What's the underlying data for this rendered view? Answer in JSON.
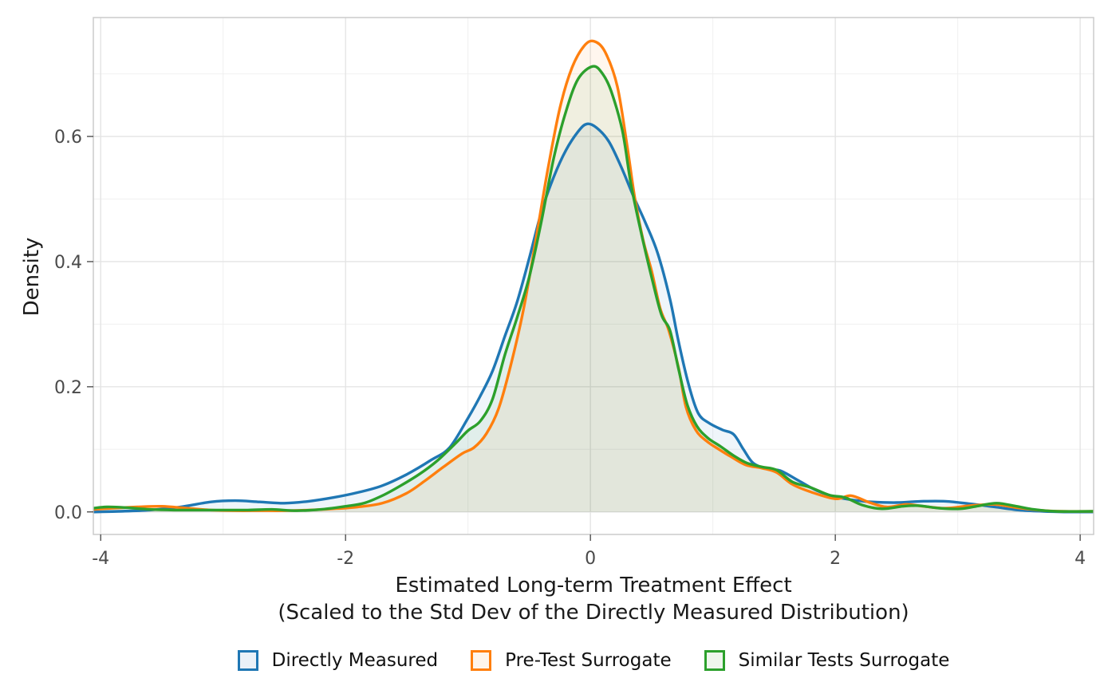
{
  "chart_data": {
    "type": "line",
    "subtype": "kernel-density-curves-with-fill",
    "title": "",
    "xlabel_line1": "Estimated Long-term Treatment Effect",
    "xlabel_line2": "(Scaled to the Std Dev of the Directly Measured Distribution)",
    "ylabel": "Density",
    "xlim": [
      -4.06,
      4.11
    ],
    "ylim": [
      -0.036,
      0.79
    ],
    "x_ticks": [
      {
        "v": -4,
        "label": "-4"
      },
      {
        "v": -2,
        "label": "-2"
      },
      {
        "v": 0,
        "label": "0"
      },
      {
        "v": 2,
        "label": "2"
      },
      {
        "v": 4,
        "label": "4"
      }
    ],
    "x_minor": [
      -3,
      -1,
      1,
      3
    ],
    "y_ticks": [
      {
        "v": 0.0,
        "label": "0.0"
      },
      {
        "v": 0.2,
        "label": "0.2"
      },
      {
        "v": 0.4,
        "label": "0.4"
      },
      {
        "v": 0.6,
        "label": "0.6"
      }
    ],
    "y_minor": [
      0.1,
      0.3,
      0.5,
      0.7
    ],
    "grid": "major and minor gridlines, light gray on white panel, gray panel border",
    "legend_position": "bottom-center",
    "colors": {
      "major_grid": "#e4e4e4",
      "minor_grid": "#f0f0f0",
      "panel_border": "#c8c8c8",
      "tick_mark": "#333333",
      "tick_label": "#4a4a4a",
      "axis_title": "#1a1a1a",
      "background": "#ffffff"
    },
    "series": [
      {
        "name": "Directly Measured",
        "color": "#1f77b4",
        "fill_tint": "#eaf1f8",
        "fill_opacity": 0.07,
        "peak": {
          "x": -0.03,
          "density": 0.62
        },
        "points": [
          [
            -4.06,
            0.0
          ],
          [
            -3.85,
            0.001
          ],
          [
            -3.6,
            0.003
          ],
          [
            -3.35,
            0.008
          ],
          [
            -3.1,
            0.016
          ],
          [
            -2.9,
            0.018
          ],
          [
            -2.7,
            0.016
          ],
          [
            -2.5,
            0.014
          ],
          [
            -2.3,
            0.017
          ],
          [
            -2.1,
            0.023
          ],
          [
            -1.9,
            0.031
          ],
          [
            -1.7,
            0.042
          ],
          [
            -1.5,
            0.06
          ],
          [
            -1.3,
            0.083
          ],
          [
            -1.15,
            0.103
          ],
          [
            -1.0,
            0.15
          ],
          [
            -0.9,
            0.185
          ],
          [
            -0.8,
            0.225
          ],
          [
            -0.7,
            0.28
          ],
          [
            -0.6,
            0.335
          ],
          [
            -0.5,
            0.405
          ],
          [
            -0.4,
            0.48
          ],
          [
            -0.3,
            0.535
          ],
          [
            -0.2,
            0.578
          ],
          [
            -0.1,
            0.608
          ],
          [
            -0.03,
            0.62
          ],
          [
            0.05,
            0.614
          ],
          [
            0.15,
            0.592
          ],
          [
            0.25,
            0.552
          ],
          [
            0.35,
            0.505
          ],
          [
            0.45,
            0.462
          ],
          [
            0.55,
            0.413
          ],
          [
            0.65,
            0.34
          ],
          [
            0.72,
            0.272
          ],
          [
            0.8,
            0.205
          ],
          [
            0.88,
            0.158
          ],
          [
            0.97,
            0.142
          ],
          [
            1.08,
            0.131
          ],
          [
            1.17,
            0.124
          ],
          [
            1.25,
            0.1
          ],
          [
            1.33,
            0.078
          ],
          [
            1.45,
            0.068
          ],
          [
            1.55,
            0.066
          ],
          [
            1.7,
            0.05
          ],
          [
            1.85,
            0.034
          ],
          [
            2.0,
            0.024
          ],
          [
            2.15,
            0.019
          ],
          [
            2.3,
            0.016
          ],
          [
            2.5,
            0.015
          ],
          [
            2.7,
            0.017
          ],
          [
            2.9,
            0.017
          ],
          [
            3.1,
            0.013
          ],
          [
            3.3,
            0.008
          ],
          [
            3.5,
            0.003
          ],
          [
            3.7,
            0.001
          ],
          [
            3.9,
            0.0
          ],
          [
            4.11,
            0.0
          ]
        ]
      },
      {
        "name": "Pre-Test Surrogate",
        "color": "#ff7f0e",
        "fill_tint": "#fef5ec",
        "fill_opacity": 0.07,
        "peak": {
          "x": 0.03,
          "density": 0.752
        },
        "points": [
          [
            -4.06,
            0.004
          ],
          [
            -3.9,
            0.006
          ],
          [
            -3.7,
            0.008
          ],
          [
            -3.5,
            0.009
          ],
          [
            -3.3,
            0.006
          ],
          [
            -3.1,
            0.003
          ],
          [
            -2.9,
            0.002
          ],
          [
            -2.7,
            0.002
          ],
          [
            -2.5,
            0.002
          ],
          [
            -2.3,
            0.003
          ],
          [
            -2.1,
            0.005
          ],
          [
            -1.9,
            0.008
          ],
          [
            -1.7,
            0.014
          ],
          [
            -1.5,
            0.03
          ],
          [
            -1.35,
            0.05
          ],
          [
            -1.2,
            0.072
          ],
          [
            -1.05,
            0.093
          ],
          [
            -0.95,
            0.103
          ],
          [
            -0.85,
            0.125
          ],
          [
            -0.75,
            0.165
          ],
          [
            -0.65,
            0.235
          ],
          [
            -0.55,
            0.32
          ],
          [
            -0.45,
            0.43
          ],
          [
            -0.35,
            0.545
          ],
          [
            -0.25,
            0.645
          ],
          [
            -0.15,
            0.71
          ],
          [
            -0.05,
            0.745
          ],
          [
            0.03,
            0.752
          ],
          [
            0.12,
            0.735
          ],
          [
            0.22,
            0.68
          ],
          [
            0.3,
            0.585
          ],
          [
            0.36,
            0.505
          ],
          [
            0.43,
            0.435
          ],
          [
            0.5,
            0.385
          ],
          [
            0.57,
            0.325
          ],
          [
            0.64,
            0.29
          ],
          [
            0.72,
            0.23
          ],
          [
            0.78,
            0.168
          ],
          [
            0.86,
            0.131
          ],
          [
            0.95,
            0.113
          ],
          [
            1.05,
            0.1
          ],
          [
            1.15,
            0.088
          ],
          [
            1.27,
            0.075
          ],
          [
            1.4,
            0.07
          ],
          [
            1.52,
            0.063
          ],
          [
            1.65,
            0.044
          ],
          [
            1.8,
            0.032
          ],
          [
            2.0,
            0.021
          ],
          [
            2.13,
            0.026
          ],
          [
            2.28,
            0.015
          ],
          [
            2.42,
            0.008
          ],
          [
            2.58,
            0.012
          ],
          [
            2.72,
            0.009
          ],
          [
            2.9,
            0.006
          ],
          [
            3.1,
            0.01
          ],
          [
            3.3,
            0.012
          ],
          [
            3.48,
            0.007
          ],
          [
            3.65,
            0.003
          ],
          [
            3.85,
            0.001
          ],
          [
            4.11,
            0.001
          ]
        ]
      },
      {
        "name": "Similar Tests Surrogate",
        "color": "#2ca02c",
        "fill_tint": "#eef6ec",
        "fill_opacity": 0.07,
        "peak": {
          "x": 0.02,
          "density": 0.712
        },
        "points": [
          [
            -4.06,
            0.006
          ],
          [
            -3.95,
            0.008
          ],
          [
            -3.8,
            0.007
          ],
          [
            -3.6,
            0.004
          ],
          [
            -3.4,
            0.003
          ],
          [
            -3.2,
            0.003
          ],
          [
            -3.0,
            0.003
          ],
          [
            -2.8,
            0.003
          ],
          [
            -2.6,
            0.004
          ],
          [
            -2.4,
            0.002
          ],
          [
            -2.2,
            0.004
          ],
          [
            -2.0,
            0.009
          ],
          [
            -1.85,
            0.014
          ],
          [
            -1.7,
            0.026
          ],
          [
            -1.55,
            0.042
          ],
          [
            -1.4,
            0.06
          ],
          [
            -1.25,
            0.082
          ],
          [
            -1.1,
            0.11
          ],
          [
            -1.0,
            0.13
          ],
          [
            -0.9,
            0.145
          ],
          [
            -0.8,
            0.18
          ],
          [
            -0.7,
            0.25
          ],
          [
            -0.6,
            0.31
          ],
          [
            -0.5,
            0.375
          ],
          [
            -0.4,
            0.465
          ],
          [
            -0.3,
            0.565
          ],
          [
            -0.2,
            0.64
          ],
          [
            -0.1,
            0.692
          ],
          [
            0.02,
            0.712
          ],
          [
            0.1,
            0.7
          ],
          [
            0.17,
            0.672
          ],
          [
            0.26,
            0.61
          ],
          [
            0.33,
            0.525
          ],
          [
            0.41,
            0.45
          ],
          [
            0.5,
            0.375
          ],
          [
            0.58,
            0.315
          ],
          [
            0.65,
            0.29
          ],
          [
            0.72,
            0.228
          ],
          [
            0.79,
            0.172
          ],
          [
            0.87,
            0.137
          ],
          [
            0.96,
            0.118
          ],
          [
            1.06,
            0.105
          ],
          [
            1.17,
            0.09
          ],
          [
            1.28,
            0.078
          ],
          [
            1.4,
            0.072
          ],
          [
            1.52,
            0.067
          ],
          [
            1.65,
            0.048
          ],
          [
            1.8,
            0.039
          ],
          [
            1.95,
            0.027
          ],
          [
            2.08,
            0.023
          ],
          [
            2.22,
            0.011
          ],
          [
            2.38,
            0.005
          ],
          [
            2.55,
            0.009
          ],
          [
            2.68,
            0.01
          ],
          [
            2.85,
            0.006
          ],
          [
            3.02,
            0.005
          ],
          [
            3.18,
            0.01
          ],
          [
            3.32,
            0.014
          ],
          [
            3.48,
            0.009
          ],
          [
            3.62,
            0.004
          ],
          [
            3.8,
            0.001
          ],
          [
            4.11,
            0.001
          ]
        ]
      }
    ]
  }
}
